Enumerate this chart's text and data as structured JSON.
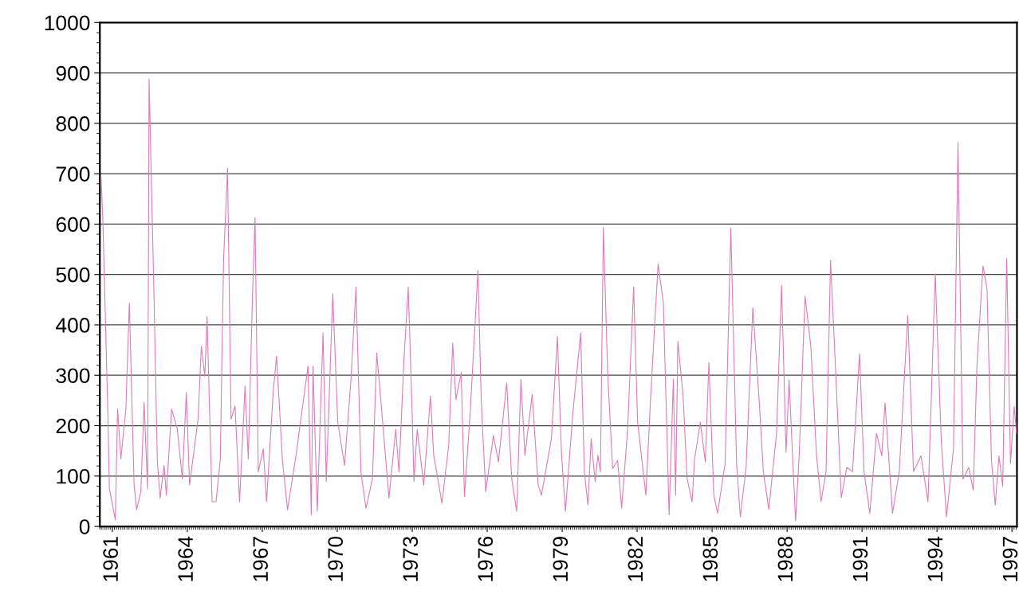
{
  "chart_data": {
    "type": "line",
    "grid": "y",
    "xlim": [
      1960.5,
      1997.2
    ],
    "xticks": [
      1961,
      1964,
      1967,
      1970,
      1973,
      1976,
      1979,
      1982,
      1985,
      1988,
      1991,
      1994,
      1997
    ],
    "ylim": [
      0,
      1000
    ],
    "yticks": [
      0,
      100,
      200,
      300,
      400,
      500,
      600,
      700,
      800,
      900,
      1000
    ],
    "series": [
      {
        "color": "#e07ab8",
        "x": [
          1960.55,
          1960.62,
          1960.82,
          1960.88,
          1961.12,
          1961.21,
          1961.34,
          1961.54,
          1961.68,
          1961.87,
          1961.97,
          1962.14,
          1962.27,
          1962.41,
          1962.47,
          1962.67,
          1962.8,
          1962.91,
          1963.07,
          1963.16,
          1963.37,
          1963.6,
          1963.8,
          1963.96,
          1964.09,
          1964.43,
          1964.56,
          1964.7,
          1964.79,
          1964.99,
          1965.15,
          1965.32,
          1965.45,
          1965.61,
          1965.75,
          1965.91,
          1966.09,
          1966.31,
          1966.44,
          1966.6,
          1966.71,
          1966.84,
          1967.04,
          1967.17,
          1967.44,
          1967.57,
          1967.7,
          1967.8,
          1968.01,
          1968.37,
          1968.5,
          1968.83,
          1968.96,
          1969.03,
          1969.2,
          1969.43,
          1969.56,
          1969.82,
          1970.02,
          1970.29,
          1970.55,
          1970.75,
          1970.95,
          1971.15,
          1971.41,
          1971.58,
          1971.74,
          1972.07,
          1972.34,
          1972.47,
          1972.67,
          1972.84,
          1973.0,
          1973.07,
          1973.2,
          1973.46,
          1973.73,
          1973.86,
          1974.19,
          1974.46,
          1974.62,
          1974.75,
          1974.96,
          1975.09,
          1975.32,
          1975.63,
          1975.76,
          1975.94,
          1976.25,
          1976.45,
          1976.78,
          1976.98,
          1977.18,
          1977.35,
          1977.51,
          1977.8,
          1978.04,
          1978.17,
          1978.57,
          1978.81,
          1978.97,
          1979.13,
          1979.43,
          1979.74,
          1979.89,
          1980.03,
          1980.16,
          1980.32,
          1980.43,
          1980.53,
          1980.65,
          1980.82,
          1981.02,
          1981.22,
          1981.38,
          1981.62,
          1981.86,
          1982.02,
          1982.35,
          1982.55,
          1982.84,
          1983.05,
          1983.28,
          1983.45,
          1983.54,
          1983.63,
          1983.84,
          1984.0,
          1984.2,
          1984.3,
          1984.53,
          1984.73,
          1984.87,
          1985.07,
          1985.22,
          1985.52,
          1985.75,
          1985.98,
          1986.13,
          1986.36,
          1986.63,
          1986.89,
          1987.05,
          1987.27,
          1987.58,
          1987.78,
          1987.96,
          1988.08,
          1988.34,
          1988.49,
          1988.72,
          1988.95,
          1989.18,
          1989.36,
          1989.56,
          1989.74,
          1989.94,
          1990.17,
          1990.39,
          1990.62,
          1990.9,
          1991.08,
          1991.31,
          1991.58,
          1991.79,
          1991.92,
          1992.22,
          1992.49,
          1992.83,
          1993.06,
          1993.36,
          1993.64,
          1993.93,
          1994.17,
          1994.38,
          1994.66,
          1994.84,
          1995.04,
          1995.27,
          1995.45,
          1995.6,
          1995.84,
          1996.0,
          1996.18,
          1996.33,
          1996.48,
          1996.63,
          1996.79,
          1996.94,
          1997.09,
          1997.18
        ],
        "values": [
          692,
          607,
          226,
          75,
          13,
          233,
          134,
          233,
          443,
          82,
          33,
          69,
          246,
          75,
          888,
          449,
          128,
          56,
          121,
          62,
          233,
          193,
          95,
          266,
          82,
          213,
          357,
          298,
          416,
          49,
          49,
          134,
          528,
          711,
          213,
          239,
          49,
          279,
          134,
          443,
          613,
          108,
          154,
          49,
          269,
          338,
          226,
          134,
          33,
          148,
          197,
          318,
          23,
          318,
          30,
          384,
          89,
          462,
          207,
          121,
          292,
          475,
          108,
          36,
          95,
          344,
          252,
          56,
          193,
          108,
          331,
          475,
          220,
          89,
          193,
          82,
          259,
          141,
          46,
          161,
          364,
          252,
          305,
          59,
          226,
          508,
          252,
          69,
          180,
          128,
          285,
          95,
          30,
          292,
          141,
          262,
          82,
          62,
          174,
          377,
          148,
          30,
          226,
          384,
          108,
          43,
          174,
          89,
          141,
          108,
          593,
          305,
          115,
          131,
          36,
          193,
          475,
          207,
          62,
          266,
          521,
          443,
          23,
          292,
          62,
          367,
          259,
          95,
          49,
          134,
          207,
          128,
          325,
          62,
          26,
          125,
          592,
          125,
          19,
          117,
          434,
          245,
          109,
          34,
          185,
          479,
          147,
          291,
          11,
          147,
          457,
          358,
          140,
          49,
          109,
          528,
          313,
          57,
          117,
          109,
          343,
          109,
          26,
          185,
          140,
          245,
          26,
          109,
          419,
          109,
          140,
          49,
          502,
          170,
          19,
          155,
          762,
          94,
          117,
          72,
          321,
          517,
          472,
          132,
          42,
          140,
          79,
          532,
          125,
          238,
          185
        ]
      }
    ]
  }
}
